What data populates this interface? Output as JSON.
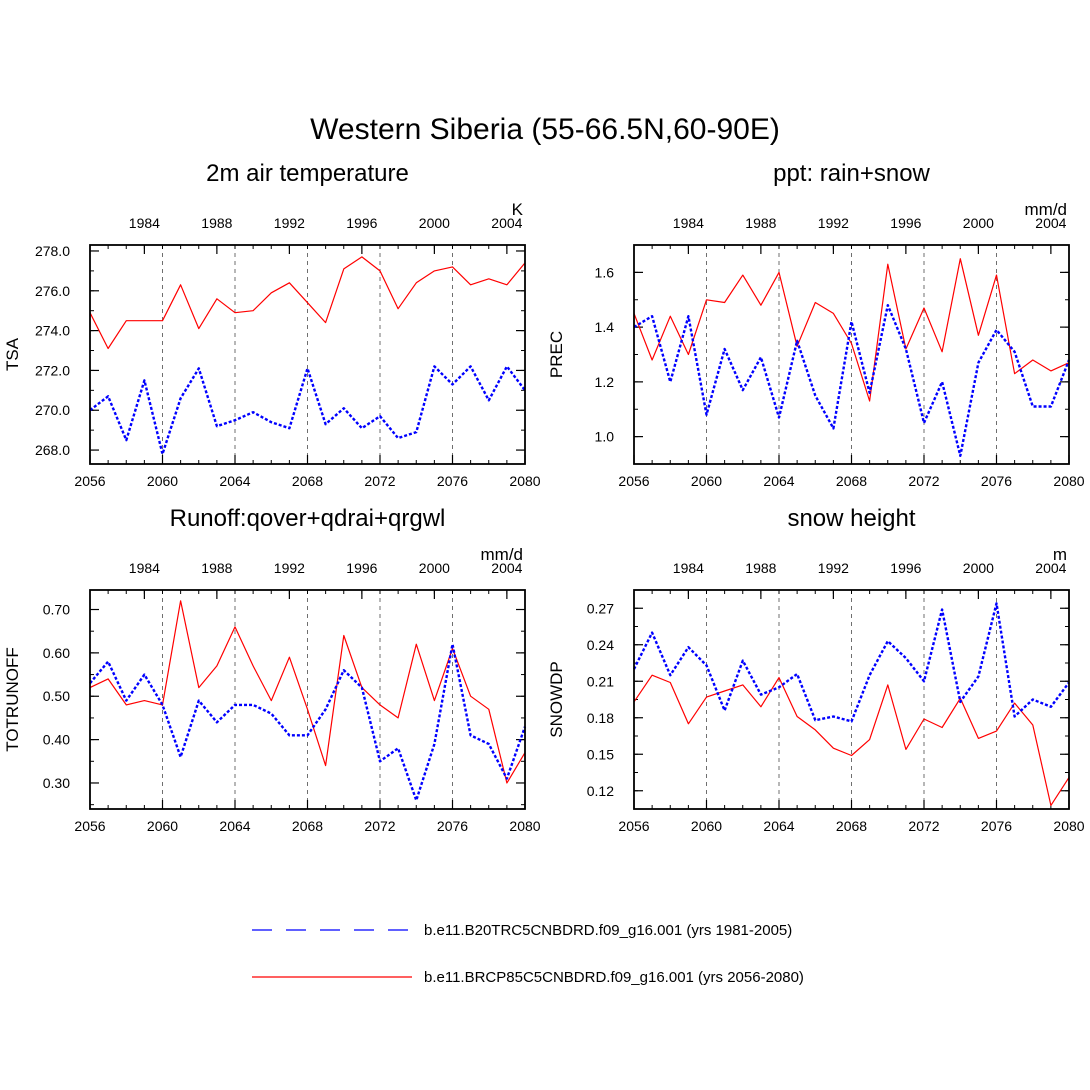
{
  "title": "Western Siberia (55-66.5N,60-90E)",
  "colors": {
    "series1": "#0000ff",
    "series2": "#ff0000",
    "axis": "#000000",
    "grid": "#000000"
  },
  "legend": {
    "placement": "bottom",
    "items": [
      {
        "label": "b.e11.B20TRC5CNBDRD.f09_g16.001 (yrs 1981-2005)",
        "color": "#0000ff",
        "style": "dashed"
      },
      {
        "label": "b.e11.BRCP85C5CNBDRD.f09_g16.001 (yrs 2056-2080)",
        "color": "#ff0000",
        "style": "solid"
      }
    ]
  },
  "chart_data": [
    {
      "type": "line",
      "title": "2m air temperature",
      "ylabel": "TSA",
      "units": "K",
      "ylim": [
        267.3,
        278.3
      ],
      "yticks": [
        "268.0",
        "270.0",
        "272.0",
        "274.0",
        "276.0",
        "278.0"
      ],
      "ytick_values": [
        268,
        270,
        272,
        274,
        276,
        278
      ],
      "xlim": [
        2056,
        2080
      ],
      "xticks_bottom": [
        "2056",
        "2060",
        "2064",
        "2068",
        "2072",
        "2076",
        "2080"
      ],
      "xticks_top": [
        "1984",
        "1988",
        "1992",
        "1996",
        "2000",
        "2004"
      ],
      "x_bottom": [
        2056,
        2057,
        2058,
        2059,
        2060,
        2061,
        2062,
        2063,
        2064,
        2065,
        2066,
        2067,
        2068,
        2069,
        2070,
        2071,
        2072,
        2073,
        2074,
        2075,
        2076,
        2077,
        2078,
        2079,
        2080
      ],
      "x_top": [
        1981,
        1982,
        1983,
        1984,
        1985,
        1986,
        1987,
        1988,
        1989,
        1990,
        1991,
        1992,
        1993,
        1994,
        1995,
        1996,
        1997,
        1998,
        1999,
        2000,
        2001,
        2002,
        2003,
        2004,
        2005
      ],
      "grid_x": [
        2060,
        2064,
        2068,
        2072,
        2076
      ],
      "series": [
        {
          "values": [
            270.0,
            270.7,
            268.5,
            271.5,
            267.8,
            270.6,
            272.1,
            269.2,
            269.5,
            269.9,
            269.4,
            269.1,
            272.1,
            269.3,
            270.1,
            269.1,
            269.7,
            268.6,
            268.9,
            272.2,
            271.3,
            272.2,
            270.5,
            272.2,
            271.0
          ]
        },
        {
          "values": [
            274.9,
            273.1,
            274.5,
            274.5,
            274.5,
            276.3,
            274.1,
            275.6,
            274.9,
            275.0,
            275.9,
            276.4,
            275.4,
            274.4,
            277.1,
            277.7,
            277.0,
            275.1,
            276.4,
            277.0,
            277.2,
            276.3,
            276.6,
            276.3,
            277.4
          ]
        }
      ]
    },
    {
      "type": "line",
      "title": "ppt: rain+snow",
      "ylabel": "PREC",
      "units": "mm/d",
      "ylim": [
        0.9,
        1.7
      ],
      "yticks": [
        "1.0",
        "1.2",
        "1.4",
        "1.6"
      ],
      "ytick_values": [
        1.0,
        1.2,
        1.4,
        1.6
      ],
      "xlim": [
        2056,
        2080
      ],
      "xticks_bottom": [
        "2056",
        "2060",
        "2064",
        "2068",
        "2072",
        "2076",
        "2080"
      ],
      "xticks_top": [
        "1984",
        "1988",
        "1992",
        "1996",
        "2000",
        "2004"
      ],
      "x_bottom": [
        2056,
        2057,
        2058,
        2059,
        2060,
        2061,
        2062,
        2063,
        2064,
        2065,
        2066,
        2067,
        2068,
        2069,
        2070,
        2071,
        2072,
        2073,
        2074,
        2075,
        2076,
        2077,
        2078,
        2079,
        2080
      ],
      "x_top": [
        1981,
        1982,
        1983,
        1984,
        1985,
        1986,
        1987,
        1988,
        1989,
        1990,
        1991,
        1992,
        1993,
        1994,
        1995,
        1996,
        1997,
        1998,
        1999,
        2000,
        2001,
        2002,
        2003,
        2004,
        2005
      ],
      "grid_x": [
        2060,
        2064,
        2068,
        2072,
        2076
      ],
      "series": [
        {
          "values": [
            1.4,
            1.44,
            1.2,
            1.44,
            1.08,
            1.32,
            1.17,
            1.29,
            1.07,
            1.35,
            1.15,
            1.03,
            1.42,
            1.16,
            1.48,
            1.32,
            1.05,
            1.2,
            0.93,
            1.27,
            1.39,
            1.31,
            1.11,
            1.11,
            1.28
          ]
        },
        {
          "values": [
            1.45,
            1.28,
            1.44,
            1.3,
            1.5,
            1.49,
            1.59,
            1.48,
            1.6,
            1.33,
            1.49,
            1.45,
            1.34,
            1.13,
            1.63,
            1.32,
            1.47,
            1.31,
            1.65,
            1.37,
            1.59,
            1.23,
            1.28,
            1.24,
            1.27
          ]
        }
      ]
    },
    {
      "type": "line",
      "title": "Runoff:qover+qdrai+qrgwl",
      "ylabel": "TOTRUNOFF",
      "units": "mm/d",
      "ylim": [
        0.24,
        0.745
      ],
      "yticks": [
        "0.30",
        "0.40",
        "0.50",
        "0.60",
        "0.70"
      ],
      "ytick_values": [
        0.3,
        0.4,
        0.5,
        0.6,
        0.7
      ],
      "xlim": [
        2056,
        2080
      ],
      "xticks_bottom": [
        "2056",
        "2060",
        "2064",
        "2068",
        "2072",
        "2076",
        "2080"
      ],
      "xticks_top": [
        "1984",
        "1988",
        "1992",
        "1996",
        "2000",
        "2004"
      ],
      "x_bottom": [
        2056,
        2057,
        2058,
        2059,
        2060,
        2061,
        2062,
        2063,
        2064,
        2065,
        2066,
        2067,
        2068,
        2069,
        2070,
        2071,
        2072,
        2073,
        2074,
        2075,
        2076,
        2077,
        2078,
        2079,
        2080
      ],
      "x_top": [
        1981,
        1982,
        1983,
        1984,
        1985,
        1986,
        1987,
        1988,
        1989,
        1990,
        1991,
        1992,
        1993,
        1994,
        1995,
        1996,
        1997,
        1998,
        1999,
        2000,
        2001,
        2002,
        2003,
        2004,
        2005
      ],
      "grid_x": [
        2060,
        2064,
        2068,
        2072,
        2076
      ],
      "series": [
        {
          "values": [
            0.53,
            0.58,
            0.49,
            0.55,
            0.48,
            0.36,
            0.49,
            0.44,
            0.48,
            0.48,
            0.46,
            0.41,
            0.41,
            0.47,
            0.56,
            0.52,
            0.35,
            0.38,
            0.26,
            0.39,
            0.62,
            0.41,
            0.39,
            0.31,
            0.43
          ]
        },
        {
          "values": [
            0.52,
            0.54,
            0.48,
            0.49,
            0.48,
            0.72,
            0.52,
            0.57,
            0.66,
            0.57,
            0.49,
            0.59,
            0.47,
            0.34,
            0.64,
            0.52,
            0.48,
            0.45,
            0.62,
            0.49,
            0.61,
            0.5,
            0.47,
            0.3,
            0.37
          ]
        }
      ]
    },
    {
      "type": "line",
      "title": "snow height",
      "ylabel": "SNOWDP",
      "units": "m",
      "ylim": [
        0.105,
        0.285
      ],
      "yticks": [
        "0.12",
        "0.15",
        "0.18",
        "0.21",
        "0.24",
        "0.27"
      ],
      "ytick_values": [
        0.12,
        0.15,
        0.18,
        0.21,
        0.24,
        0.27
      ],
      "xlim": [
        2056,
        2080
      ],
      "xticks_bottom": [
        "2056",
        "2060",
        "2064",
        "2068",
        "2072",
        "2076",
        "2080"
      ],
      "xticks_top": [
        "1984",
        "1988",
        "1992",
        "1996",
        "2000",
        "2004"
      ],
      "x_bottom": [
        2056,
        2057,
        2058,
        2059,
        2060,
        2061,
        2062,
        2063,
        2064,
        2065,
        2066,
        2067,
        2068,
        2069,
        2070,
        2071,
        2072,
        2073,
        2074,
        2075,
        2076,
        2077,
        2078,
        2079,
        2080
      ],
      "x_top": [
        1981,
        1982,
        1983,
        1984,
        1985,
        1986,
        1987,
        1988,
        1989,
        1990,
        1991,
        1992,
        1993,
        1994,
        1995,
        1996,
        1997,
        1998,
        1999,
        2000,
        2001,
        2002,
        2003,
        2004,
        2005
      ],
      "grid_x": [
        2060,
        2064,
        2068,
        2072,
        2076
      ],
      "series": [
        {
          "values": [
            0.22,
            0.25,
            0.215,
            0.238,
            0.223,
            0.186,
            0.227,
            0.199,
            0.205,
            0.216,
            0.178,
            0.181,
            0.177,
            0.215,
            0.243,
            0.229,
            0.21,
            0.269,
            0.193,
            0.214,
            0.274,
            0.181,
            0.195,
            0.189,
            0.209
          ]
        },
        {
          "values": [
            0.193,
            0.215,
            0.209,
            0.175,
            0.197,
            0.202,
            0.207,
            0.189,
            0.213,
            0.181,
            0.17,
            0.155,
            0.149,
            0.162,
            0.207,
            0.154,
            0.179,
            0.172,
            0.196,
            0.163,
            0.169,
            0.192,
            0.174,
            0.108,
            0.131
          ]
        }
      ]
    }
  ]
}
